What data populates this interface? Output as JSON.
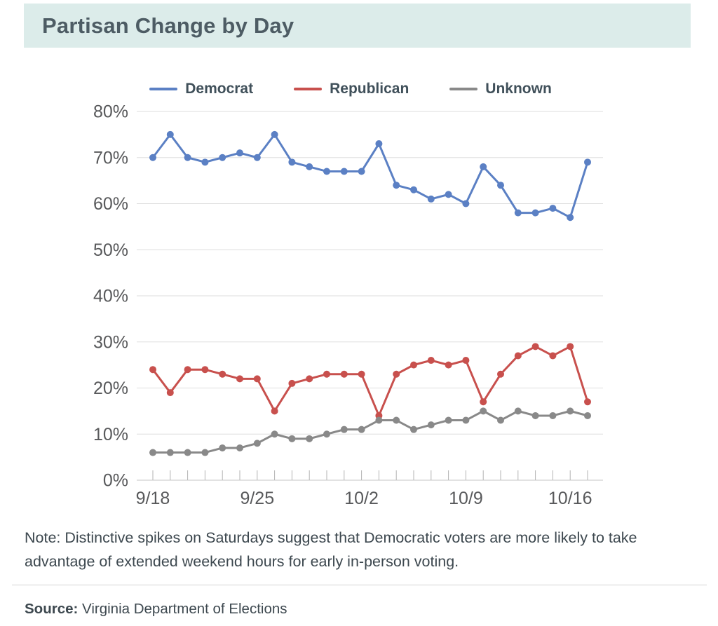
{
  "header": {
    "title": "Partisan Change by Day"
  },
  "note": {
    "lines": [
      "Note: Distinctive spikes on Saturdays suggest that Democratic voters are more likely to take",
      "advantage of extended weekend hours for early in-person voting."
    ]
  },
  "source": {
    "label": "Source:",
    "text": "Virginia Department of Elections"
  },
  "chart_data": {
    "type": "line",
    "title": "Partisan Change by Day",
    "x_dates": [
      "9/18",
      "9/19",
      "9/21",
      "9/22",
      "9/23",
      "9/24",
      "9/25",
      "9/26",
      "9/28",
      "9/29",
      "9/30",
      "10/1",
      "10/2",
      "10/3",
      "10/5",
      "10/6",
      "10/7",
      "10/8",
      "10/9",
      "10/10",
      "10/12",
      "10/13",
      "10/14",
      "10/15",
      "10/16",
      "10/17"
    ],
    "x_axis_labels": [
      {
        "index": 0,
        "label": "9/18"
      },
      {
        "index": 6,
        "label": "9/25"
      },
      {
        "index": 12,
        "label": "10/2"
      },
      {
        "index": 18,
        "label": "10/9"
      },
      {
        "index": 24,
        "label": "10/16"
      }
    ],
    "ylim": [
      0,
      80
    ],
    "ytick_step": 10,
    "ytick_suffix": "%",
    "grid": "horizontal",
    "legend_position": "top",
    "series": [
      {
        "name": "Democrat",
        "color": "#5b80c4",
        "values": [
          70,
          75,
          70,
          69,
          70,
          71,
          70,
          75,
          69,
          68,
          67,
          67,
          67,
          73,
          64,
          63,
          61,
          62,
          60,
          68,
          64,
          58,
          58,
          59,
          57,
          69
        ]
      },
      {
        "name": "Republican",
        "color": "#c8504d",
        "values": [
          24,
          19,
          24,
          24,
          23,
          22,
          22,
          15,
          21,
          22,
          23,
          23,
          23,
          14,
          23,
          25,
          26,
          25,
          26,
          17,
          23,
          27,
          29,
          27,
          29,
          17
        ]
      },
      {
        "name": "Unknown",
        "color": "#898989",
        "values": [
          6,
          6,
          6,
          6,
          7,
          7,
          8,
          10,
          9,
          9,
          10,
          11,
          11,
          13,
          13,
          11,
          12,
          13,
          13,
          15,
          13,
          15,
          14,
          14,
          15,
          14
        ]
      }
    ],
    "colors": {
      "gridline": "#dedede",
      "axis_line": "#c6c6c6",
      "tick": "#b3b3b3",
      "axis_text": "#58595b"
    }
  }
}
